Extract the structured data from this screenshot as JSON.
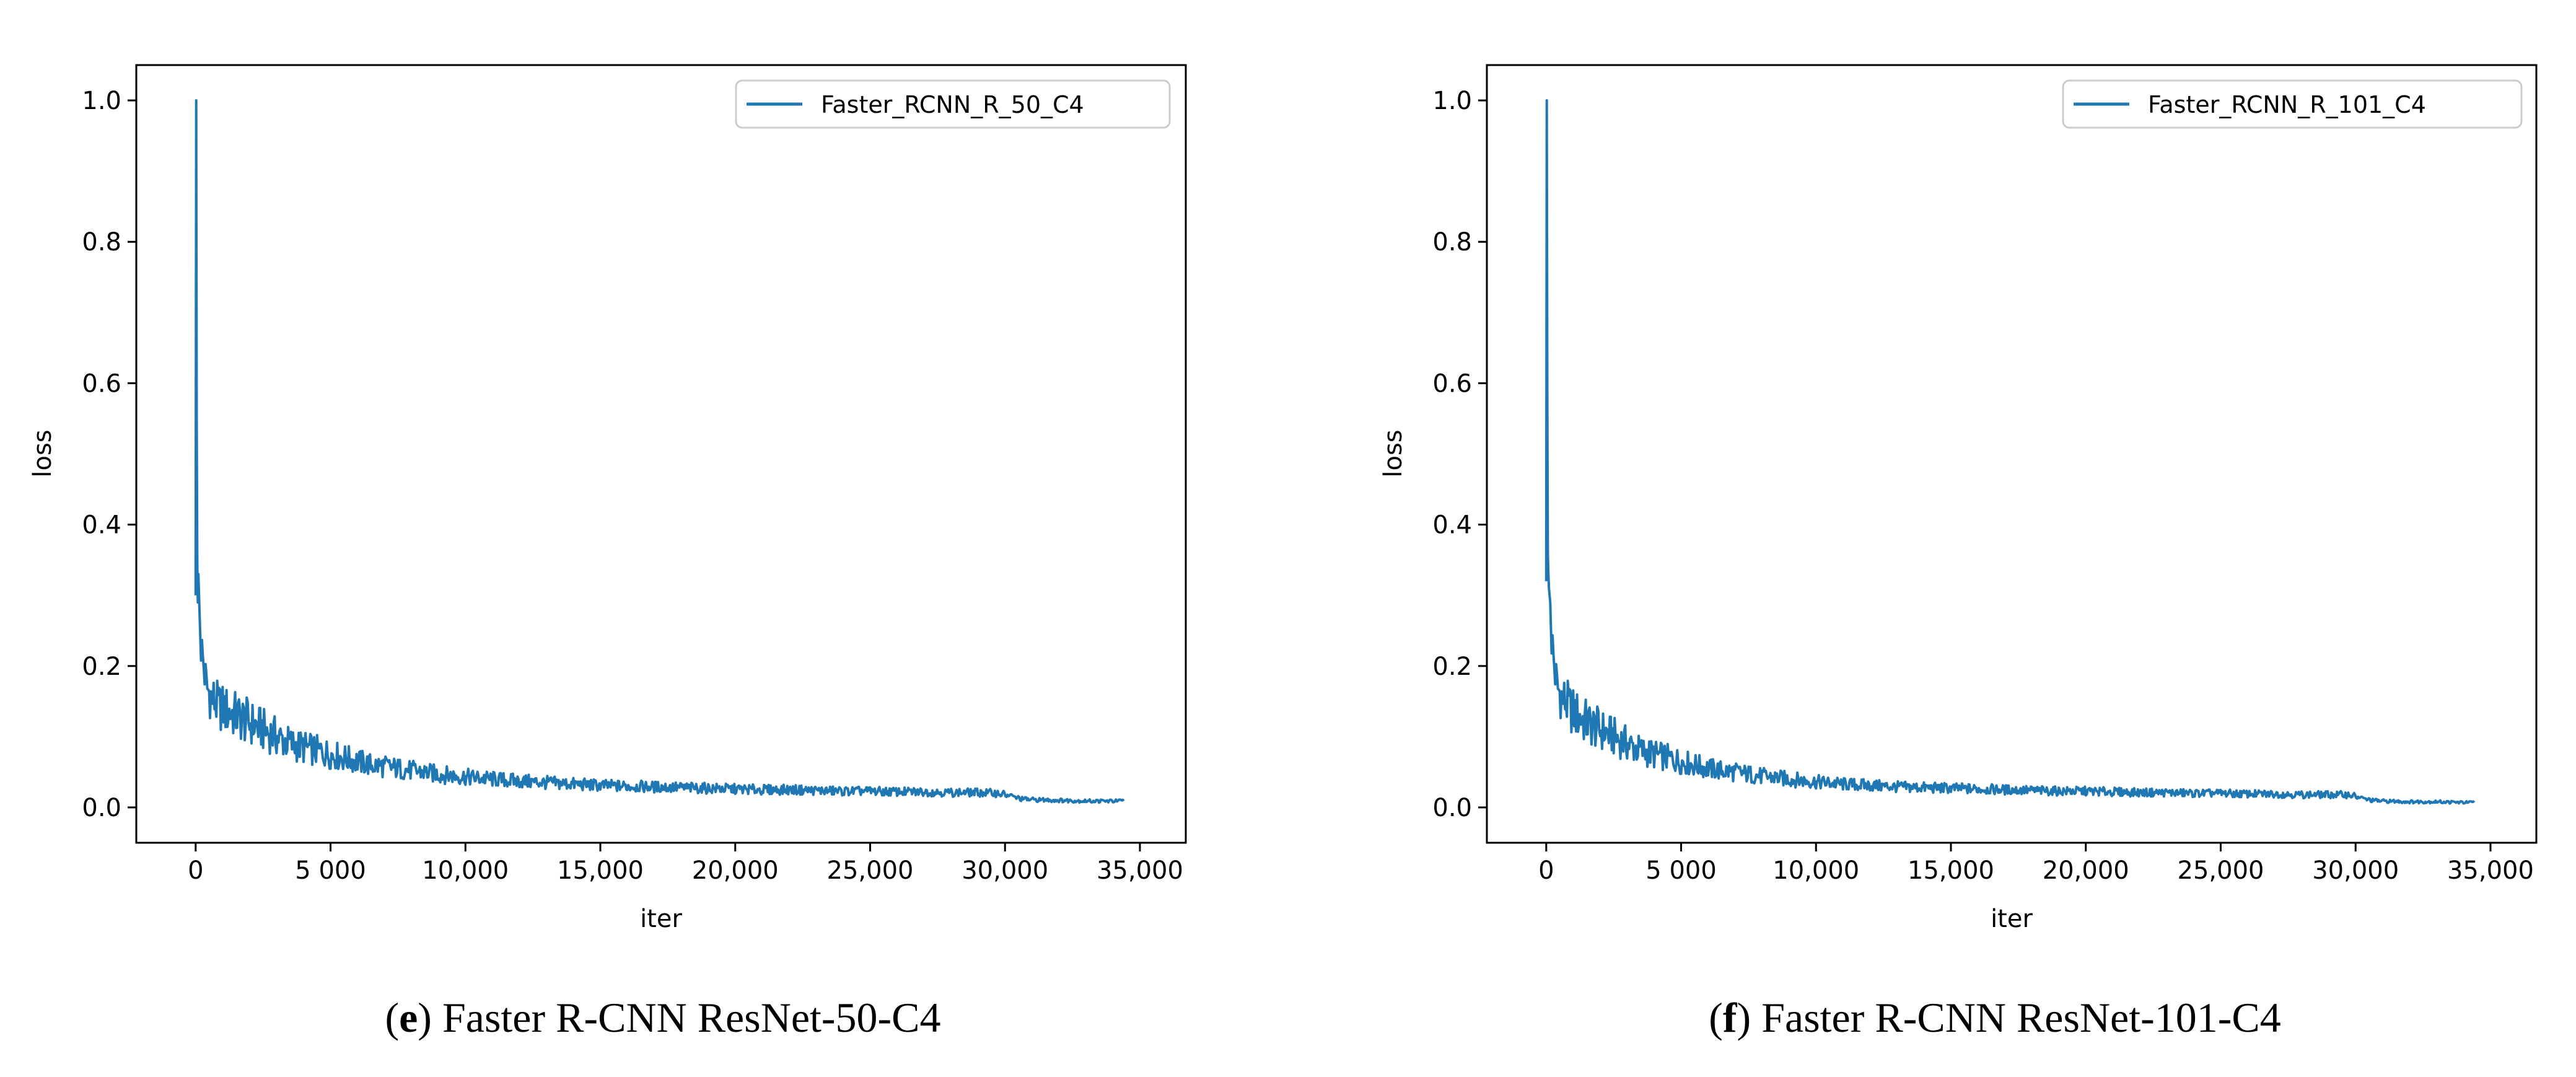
{
  "figure": {
    "captions": [
      {
        "letter": "e",
        "text": " Faster R-CNN ResNet-50-C4"
      },
      {
        "letter": "f",
        "text": " Faster R-CNN ResNet-101-C4"
      }
    ]
  },
  "colors": {
    "line": "#1f77b4",
    "axis": "#000000",
    "legend_border": "#cccccc",
    "background": "#ffffff"
  },
  "chart_data": [
    {
      "type": "line",
      "title": "",
      "xlabel": "iter",
      "ylabel": "loss",
      "xlim": [
        -2200,
        36700
      ],
      "ylim": [
        -0.05,
        1.05
      ],
      "xticks": [
        0,
        5000,
        10000,
        15000,
        20000,
        25000,
        30000,
        35000
      ],
      "xtick_labels": [
        "0",
        "5 000",
        "10,000",
        "15,000",
        "20,000",
        "25,000",
        "30,000",
        "35,000"
      ],
      "yticks": [
        0.0,
        0.2,
        0.4,
        0.6,
        0.8,
        1.0
      ],
      "ytick_labels": [
        "0.0",
        "0.2",
        "0.4",
        "0.6",
        "0.8",
        "1.0"
      ],
      "grid": false,
      "legend_position": "top-right",
      "series": [
        {
          "name": "Faster_RCNN_R_50_C4",
          "x": [
            0,
            20,
            40,
            60,
            80,
            100,
            150,
            200,
            300,
            400,
            600,
            800,
            1000,
            1500,
            2000,
            2500,
            3000,
            3500,
            4000,
            4500,
            5000,
            5500,
            6000,
            6500,
            7000,
            7500,
            8000,
            9000,
            10000,
            11000,
            12000,
            13000,
            14000,
            15000,
            16000,
            17000,
            18000,
            19000,
            20000,
            21000,
            22000,
            23000,
            24000,
            25000,
            26000,
            27000,
            28000,
            29000,
            29800,
            30200,
            30600,
            31000,
            32000,
            33000,
            34000,
            34400
          ],
          "y": [
            0.3,
            1.0,
            0.55,
            0.35,
            0.29,
            0.33,
            0.27,
            0.23,
            0.2,
            0.17,
            0.155,
            0.145,
            0.14,
            0.13,
            0.12,
            0.11,
            0.1,
            0.09,
            0.085,
            0.08,
            0.075,
            0.07,
            0.065,
            0.06,
            0.058,
            0.055,
            0.052,
            0.047,
            0.043,
            0.04,
            0.037,
            0.035,
            0.033,
            0.031,
            0.03,
            0.029,
            0.028,
            0.027,
            0.026,
            0.025,
            0.025,
            0.024,
            0.023,
            0.023,
            0.022,
            0.022,
            0.021,
            0.021,
            0.02,
            0.016,
            0.012,
            0.011,
            0.01,
            0.009,
            0.009,
            0.009
          ]
        }
      ]
    },
    {
      "type": "line",
      "title": "",
      "xlabel": "iter",
      "ylabel": "loss",
      "xlim": [
        -2200,
        36700
      ],
      "ylim": [
        -0.05,
        1.05
      ],
      "xticks": [
        0,
        5000,
        10000,
        15000,
        20000,
        25000,
        30000,
        35000
      ],
      "xtick_labels": [
        "0",
        "5 000",
        "10,000",
        "15,000",
        "20,000",
        "25,000",
        "30,000",
        "35,000"
      ],
      "yticks": [
        0.0,
        0.2,
        0.4,
        0.6,
        0.8,
        1.0
      ],
      "ytick_labels": [
        "0.0",
        "0.2",
        "0.4",
        "0.6",
        "0.8",
        "1.0"
      ],
      "grid": false,
      "legend_position": "top-right",
      "series": [
        {
          "name": "Faster_RCNN_R_101_C4",
          "x": [
            0,
            20,
            40,
            60,
            80,
            100,
            150,
            200,
            300,
            400,
            600,
            800,
            1000,
            1500,
            2000,
            2500,
            3000,
            3500,
            4000,
            4500,
            5000,
            5500,
            6000,
            6500,
            7000,
            7500,
            8000,
            9000,
            10000,
            11000,
            12000,
            13000,
            14000,
            15000,
            16000,
            17000,
            18000,
            19000,
            20000,
            21000,
            22000,
            23000,
            24000,
            25000,
            26000,
            27000,
            28000,
            29000,
            29800,
            30200,
            30600,
            31000,
            32000,
            33000,
            34000,
            34400
          ],
          "y": [
            0.32,
            1.0,
            0.6,
            0.36,
            0.33,
            0.31,
            0.29,
            0.24,
            0.2,
            0.17,
            0.155,
            0.145,
            0.135,
            0.12,
            0.11,
            0.1,
            0.09,
            0.08,
            0.075,
            0.07,
            0.065,
            0.06,
            0.055,
            0.052,
            0.05,
            0.047,
            0.044,
            0.04,
            0.036,
            0.033,
            0.031,
            0.029,
            0.028,
            0.027,
            0.026,
            0.025,
            0.024,
            0.023,
            0.023,
            0.022,
            0.021,
            0.021,
            0.02,
            0.02,
            0.019,
            0.019,
            0.018,
            0.018,
            0.018,
            0.013,
            0.01,
            0.009,
            0.008,
            0.008,
            0.007,
            0.007
          ]
        }
      ]
    }
  ]
}
